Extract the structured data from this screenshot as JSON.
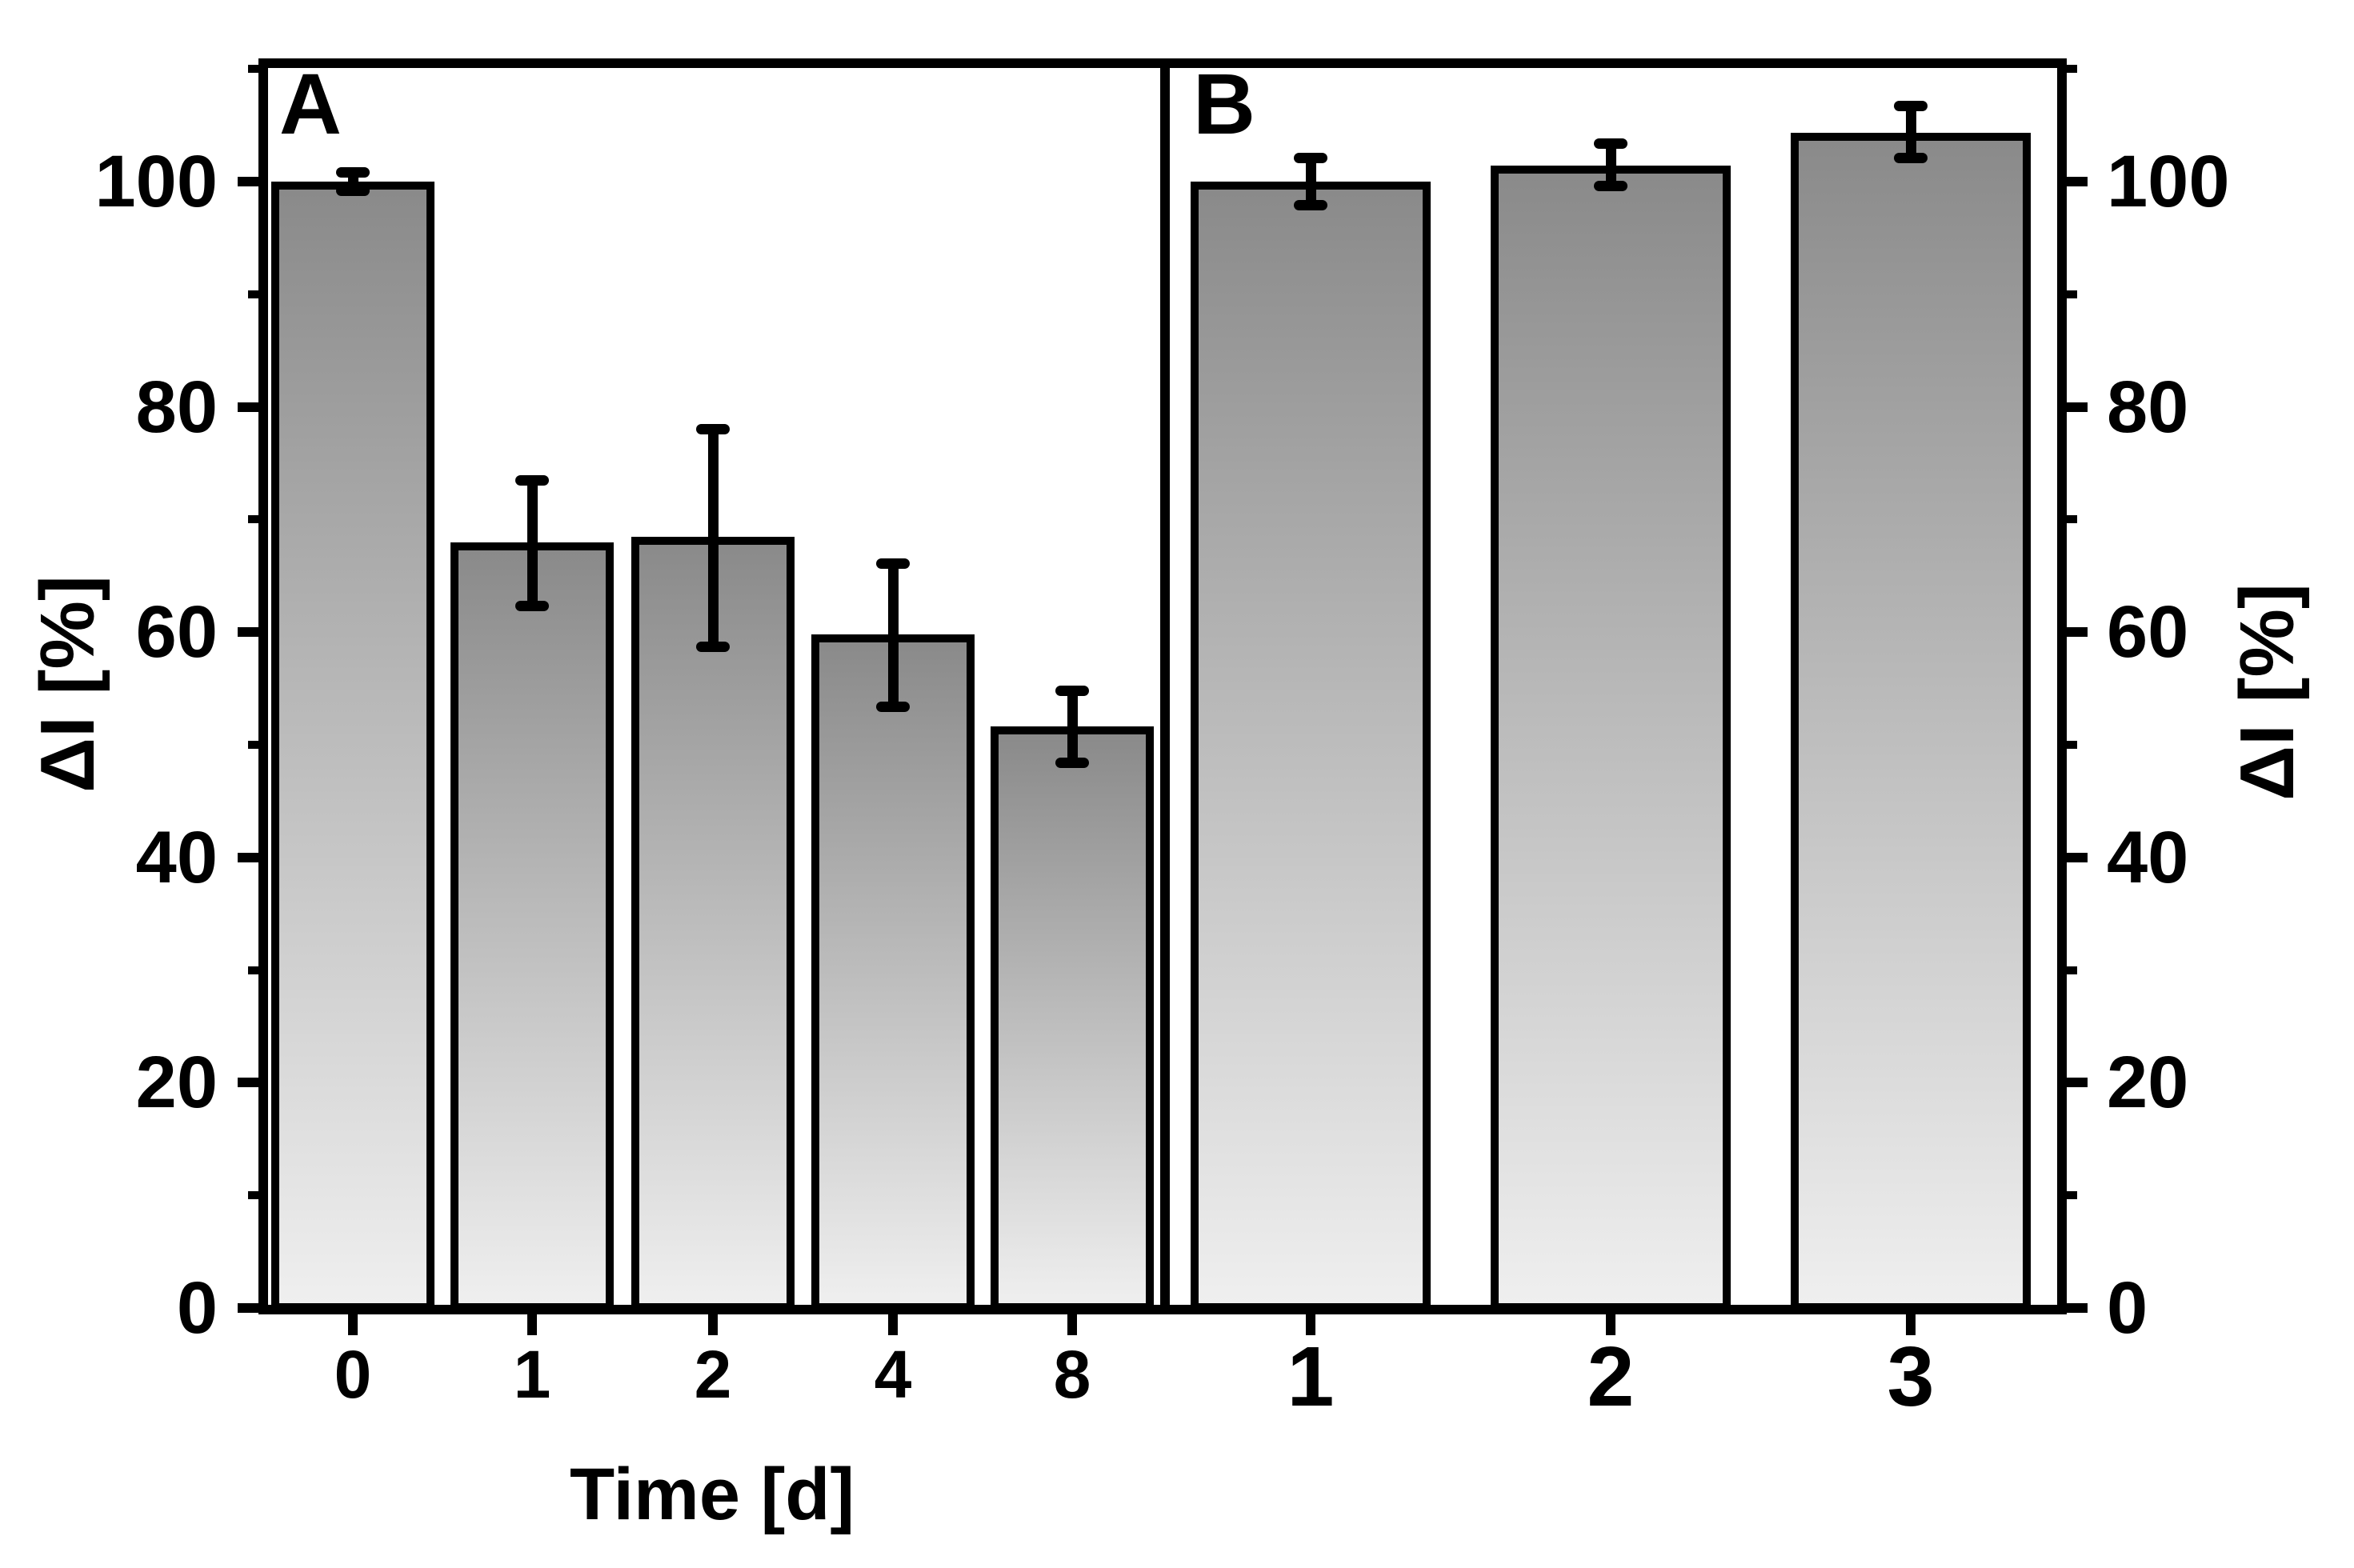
{
  "colors": {
    "background": "#ffffff",
    "line": "#000000",
    "bar_gradient_top": "#8a8a8a",
    "bar_gradient_bottom": "#efefef"
  },
  "chart_data": [
    {
      "type": "bar",
      "panel_label": "A",
      "title": "",
      "xlabel": "Time [d]",
      "ylabel": "ΔI [%]",
      "y_axis_side": "left",
      "ylim": [
        0,
        110
      ],
      "y_major_ticks": [
        0,
        20,
        40,
        60,
        80,
        100
      ],
      "y_minor_ticks": [
        10,
        30,
        50,
        70,
        90,
        110
      ],
      "grid": false,
      "legend": null,
      "categories": [
        "0",
        "1",
        "2",
        "4",
        "8"
      ],
      "values": [
        100.0,
        68.0,
        68.5,
        59.8,
        51.6
      ],
      "errors_up": [
        0.8,
        5.5,
        9.5,
        6.3,
        3.2
      ],
      "errors_down": [
        0.8,
        5.7,
        9.8,
        6.4,
        3.2
      ]
    },
    {
      "type": "bar",
      "panel_label": "B",
      "title": "",
      "xlabel": "",
      "ylabel": "ΔI [%]",
      "y_axis_side": "right",
      "ylim": [
        0,
        110
      ],
      "y_major_ticks": [
        0,
        20,
        40,
        60,
        80,
        100
      ],
      "y_minor_ticks": [
        10,
        30,
        50,
        70,
        90,
        110
      ],
      "grid": false,
      "legend": null,
      "categories": [
        "1",
        "2",
        "3"
      ],
      "values": [
        100.0,
        101.4,
        104.3
      ],
      "errors_up": [
        2.1,
        2.0,
        2.4
      ],
      "errors_down": [
        2.1,
        1.8,
        2.2
      ]
    }
  ]
}
